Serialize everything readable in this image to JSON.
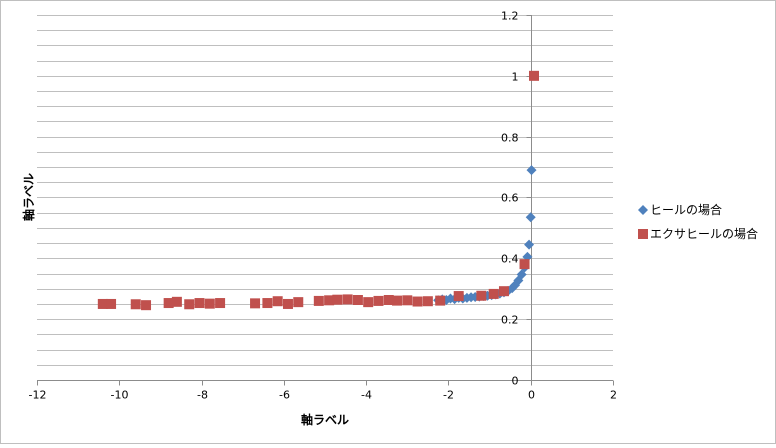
{
  "chart_data": {
    "type": "scatter",
    "xlabel": "軸ラベル",
    "ylabel": "軸ラベル",
    "xlim": [
      -12,
      2
    ],
    "ylim": [
      0,
      1.2
    ],
    "x_major_step": 2,
    "y_major_step": 0.2,
    "y_minor_step": 0.05,
    "grid": "horizontal major and minor",
    "legend_position": "right",
    "x_ticks": [
      "-12",
      "-10",
      "-8",
      "-6",
      "-4",
      "-2",
      "0",
      "2"
    ],
    "y_ticks": [
      "0",
      "0.2",
      "0.4",
      "0.6",
      "0.8",
      "1",
      "1.2"
    ],
    "series": [
      {
        "name": "ヒールの場合",
        "color": "#4f81bd",
        "marker": "diamond",
        "points": [
          [
            -2.25,
            0.262
          ],
          [
            -2.15,
            0.265
          ],
          [
            -2.05,
            0.263
          ],
          [
            -1.95,
            0.268
          ],
          [
            -1.85,
            0.266
          ],
          [
            -1.75,
            0.27
          ],
          [
            -1.65,
            0.268
          ],
          [
            -1.55,
            0.27
          ],
          [
            -1.45,
            0.272
          ],
          [
            -1.35,
            0.273
          ],
          [
            -1.25,
            0.274
          ],
          [
            -1.15,
            0.276
          ],
          [
            -1.05,
            0.277
          ],
          [
            -0.95,
            0.279
          ],
          [
            -0.85,
            0.281
          ],
          [
            -0.75,
            0.284
          ],
          [
            -0.65,
            0.288
          ],
          [
            -0.55,
            0.293
          ],
          [
            -0.45,
            0.302
          ],
          [
            -0.38,
            0.312
          ],
          [
            -0.3,
            0.327
          ],
          [
            -0.22,
            0.347
          ],
          [
            -0.15,
            0.37
          ],
          [
            -0.08,
            0.405
          ],
          [
            -0.04,
            0.445
          ],
          [
            0.0,
            0.535
          ],
          [
            0.02,
            0.69
          ]
        ]
      },
      {
        "name": "エクサヒールの場合",
        "color": "#c0504d",
        "marker": "square",
        "points": [
          [
            -10.4,
            0.25
          ],
          [
            -10.2,
            0.25
          ],
          [
            -9.6,
            0.249
          ],
          [
            -9.35,
            0.246
          ],
          [
            -8.8,
            0.253
          ],
          [
            -8.6,
            0.257
          ],
          [
            -8.3,
            0.249
          ],
          [
            -8.05,
            0.253
          ],
          [
            -7.8,
            0.251
          ],
          [
            -7.55,
            0.253
          ],
          [
            -6.7,
            0.252
          ],
          [
            -6.4,
            0.253
          ],
          [
            -6.15,
            0.259
          ],
          [
            -5.9,
            0.25
          ],
          [
            -5.65,
            0.256
          ],
          [
            -5.15,
            0.26
          ],
          [
            -4.9,
            0.262
          ],
          [
            -4.7,
            0.264
          ],
          [
            -4.45,
            0.265
          ],
          [
            -4.2,
            0.263
          ],
          [
            -3.95,
            0.256
          ],
          [
            -3.7,
            0.26
          ],
          [
            -3.45,
            0.263
          ],
          [
            -3.25,
            0.261
          ],
          [
            -3.0,
            0.262
          ],
          [
            -2.75,
            0.258
          ],
          [
            -2.5,
            0.259
          ],
          [
            -2.2,
            0.261
          ],
          [
            -1.75,
            0.276
          ],
          [
            -1.2,
            0.277
          ],
          [
            -0.9,
            0.283
          ],
          [
            -0.65,
            0.292
          ],
          [
            -0.15,
            0.381
          ],
          [
            0.08,
            1.0
          ]
        ]
      }
    ]
  }
}
